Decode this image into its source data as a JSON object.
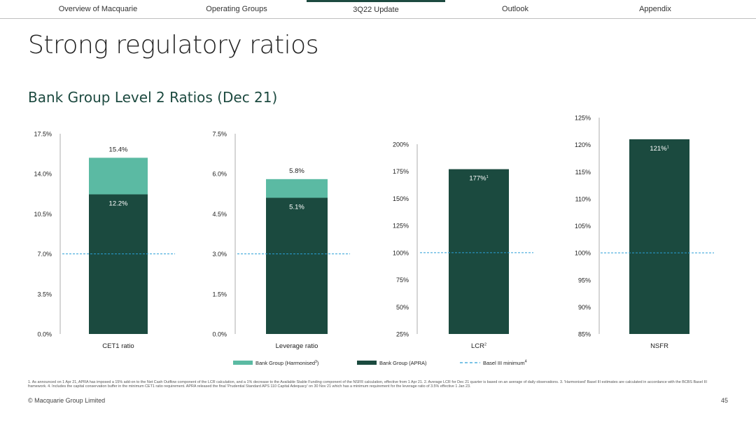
{
  "nav": {
    "items": [
      "Overview of Macquarie",
      "Operating Groups",
      "3Q22 Update",
      "Outlook",
      "Appendix"
    ],
    "active_index": 2
  },
  "title": "Strong regulatory ratios",
  "subtitle": "Bank Group Level 2 Ratios (Dec 21)",
  "colors": {
    "harmonised": "#5bbaa3",
    "apra": "#1b4a3f",
    "basel": "#2a9fd6"
  },
  "chart_data": [
    {
      "type": "bar",
      "category": "CET1 ratio",
      "yticks": [
        "17.5%",
        "14.0%",
        "10.5%",
        "7.0%",
        "3.5%",
        "0.0%"
      ],
      "ylim": [
        0,
        17.5
      ],
      "series": [
        {
          "name": "Bank Group (APRA)",
          "values": [
            12.2
          ],
          "label": "12.2%"
        },
        {
          "name": "Bank Group (Harmonised)",
          "values": [
            15.4
          ],
          "label": "15.4%"
        }
      ],
      "basel_minimum": 7.0
    },
    {
      "type": "bar",
      "category": "Leverage ratio",
      "yticks": [
        "7.5%",
        "6.0%",
        "4.5%",
        "3.0%",
        "1.5%",
        "0.0%"
      ],
      "ylim": [
        0,
        7.5
      ],
      "series": [
        {
          "name": "Bank Group (APRA)",
          "values": [
            5.1
          ],
          "label": "5.1%"
        },
        {
          "name": "Bank Group (Harmonised)",
          "values": [
            5.8
          ],
          "label": "5.8%"
        }
      ],
      "basel_minimum": 3.0
    },
    {
      "type": "bar",
      "category": "LCR",
      "category_sup": "2",
      "yticks": [
        "200%",
        "175%",
        "150%",
        "125%",
        "100%",
        "75%",
        "50%",
        "25%"
      ],
      "ylim": [
        25,
        200
      ],
      "series": [
        {
          "name": "Bank Group (APRA)",
          "values": [
            177
          ],
          "label": "177%",
          "label_sup": "1"
        }
      ],
      "basel_minimum": 100
    },
    {
      "type": "bar",
      "category": "NSFR",
      "yticks": [
        "125%",
        "120%",
        "115%",
        "110%",
        "105%",
        "100%",
        "95%",
        "90%",
        "85%"
      ],
      "ylim": [
        85,
        125
      ],
      "series": [
        {
          "name": "Bank Group (APRA)",
          "values": [
            121
          ],
          "label": "121%",
          "label_sup": "1"
        }
      ],
      "basel_minimum": 100
    }
  ],
  "legend": {
    "harmonised": "Bank Group (Harmonised",
    "harmonised_sup": "3",
    "harmonised_close": ")",
    "apra": "Bank Group (APRA)",
    "basel": "Basel III minimum",
    "basel_sup": "4"
  },
  "footnote": "1. As announced on 1 Apr 21, APRA has imposed a 15% add-on to the Net Cash Outflow component of the LCR calculation, and a 1% decrease to the Available Stable Funding component of the NSFR calculation, effective from 1 Apr 21. 2. Average LCR for Dec 21 quarter is based on an average of daily observations. 3. 'Harmonised' Basel III estimates are calculated in accordance with the BCBS Basel III framework. 4. Includes the capital conservation buffer in the minimum CET1 ratio requirement. APRA released the final 'Prudential Standard APS 110 Capital Adequacy' on 30 Nov 21 which has a minimum requirement for the leverage ratio of 3.5% effective 1 Jan 23.",
  "copyright": "© Macquarie Group Limited",
  "page_number": "45"
}
